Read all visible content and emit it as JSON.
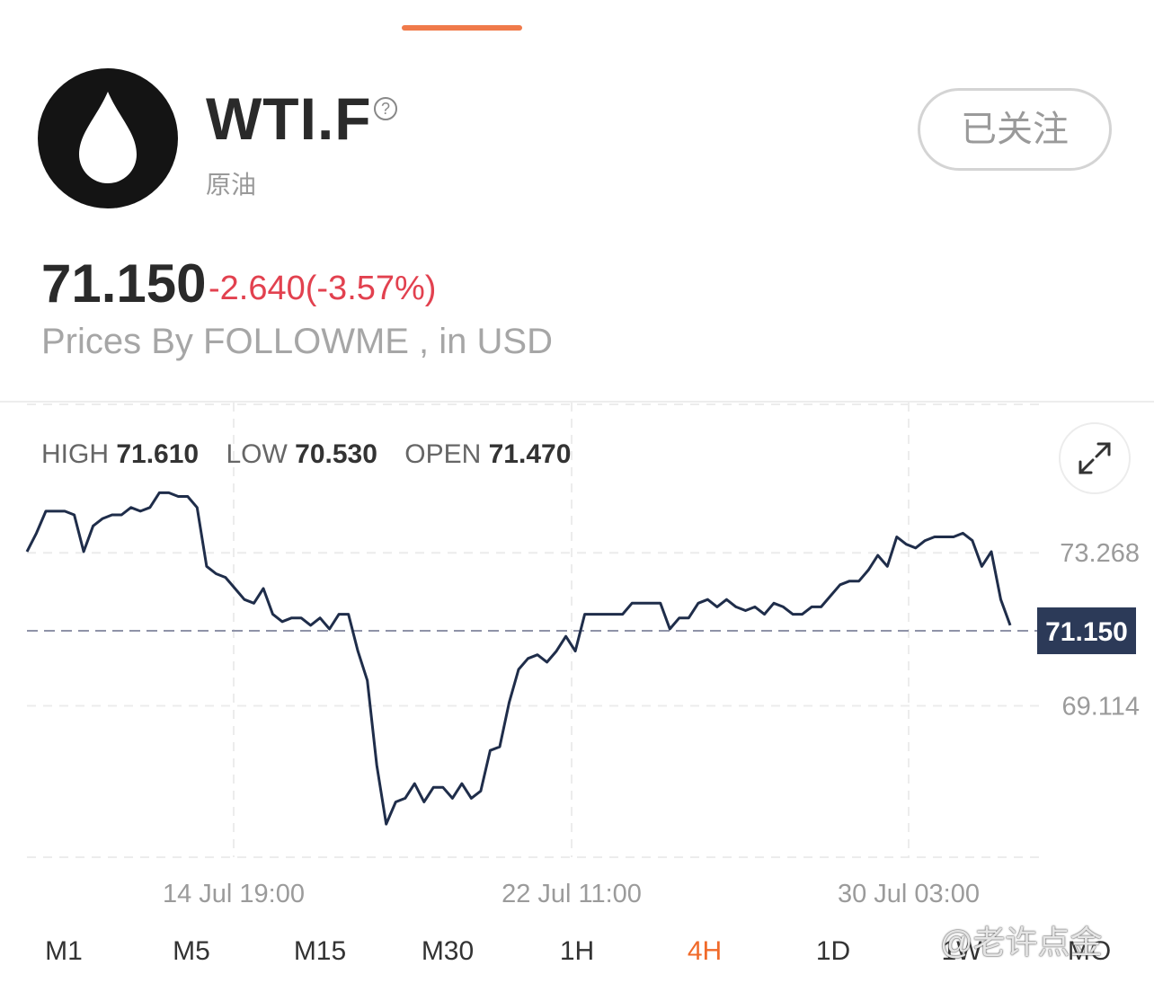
{
  "header": {
    "symbol": "WTI.F",
    "name": "原油",
    "follow_label": "已关注",
    "icons": [
      "oil-drop-icon",
      "help-icon"
    ]
  },
  "quote": {
    "price": "71.150",
    "change": "-2.640(-3.57%)",
    "source": "Prices By FOLLOWME , in USD",
    "change_color": "#e2414f"
  },
  "stats": {
    "high_label": "HIGH",
    "high_value": "71.610",
    "low_label": "LOW",
    "low_value": "70.530",
    "open_label": "OPEN",
    "open_value": "71.470"
  },
  "chart_data": {
    "type": "line",
    "ylim": [
      65.0,
      77.35
    ],
    "y_ticks": [
      "73.268",
      "69.114"
    ],
    "x_ticks": [
      "14 Jul 19:00",
      "22 Jul 11:00",
      "30 Jul 03:00"
    ],
    "current_label": "71.150",
    "current_value": 71.15,
    "line_color": "#1f2d4a",
    "values": [
      73.3,
      73.8,
      74.4,
      74.4,
      74.4,
      74.3,
      73.3,
      74.0,
      74.2,
      74.3,
      74.3,
      74.5,
      74.4,
      74.5,
      74.9,
      74.9,
      74.8,
      74.8,
      74.5,
      72.9,
      72.7,
      72.6,
      72.3,
      72.0,
      71.9,
      72.3,
      71.6,
      71.4,
      71.5,
      71.5,
      71.3,
      71.5,
      71.2,
      71.6,
      71.6,
      70.6,
      69.8,
      67.5,
      65.9,
      66.5,
      66.6,
      67.0,
      66.5,
      66.9,
      66.9,
      66.6,
      67.0,
      66.6,
      66.8,
      67.9,
      68.0,
      69.2,
      70.1,
      70.4,
      70.5,
      70.3,
      70.6,
      71.0,
      70.6,
      71.6,
      71.6,
      71.6,
      71.6,
      71.6,
      71.9,
      71.9,
      71.9,
      71.9,
      71.2,
      71.5,
      71.5,
      71.9,
      72.0,
      71.8,
      72.0,
      71.8,
      71.7,
      71.8,
      71.6,
      71.9,
      71.8,
      71.6,
      71.6,
      71.8,
      71.8,
      72.1,
      72.4,
      72.5,
      72.5,
      72.8,
      73.2,
      72.9,
      73.7,
      73.5,
      73.4,
      73.6,
      73.7,
      73.7,
      73.7,
      73.8,
      73.6,
      72.9,
      73.3,
      72.0,
      71.3
    ]
  },
  "timeframes": [
    "M1",
    "M5",
    "M15",
    "M30",
    "1H",
    "4H",
    "1D",
    "1W",
    "MO"
  ],
  "active_timeframe": "4H",
  "watermark": "@老许点金"
}
